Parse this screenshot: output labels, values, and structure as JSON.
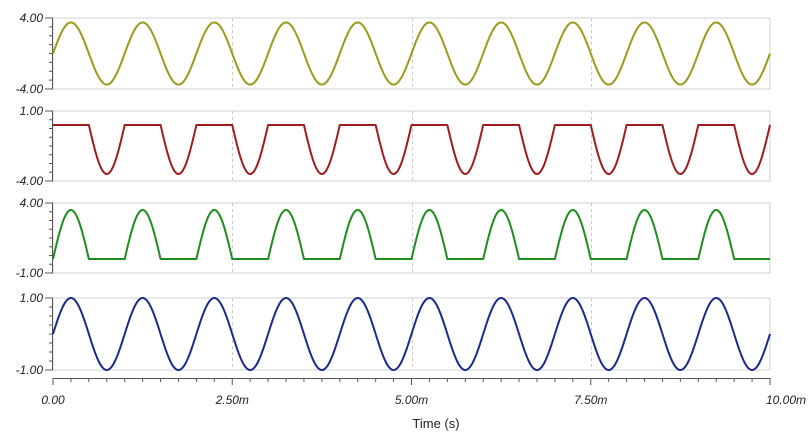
{
  "chart_data": {
    "type": "line",
    "xlabel": "Time (s)",
    "x_ticks": [
      "0.00",
      "2.50m",
      "5.00m",
      "7.50m",
      "10.00m"
    ],
    "x_tick_values": [
      0,
      0.0025,
      0.005,
      0.0075,
      0.01
    ],
    "xlim": [
      0,
      0.01
    ],
    "grid": "vertical dashed at major x ticks",
    "panels": [
      {
        "color": "#9a9a1e",
        "ylim": [
          -4,
          4
        ],
        "y_tick_labels": [
          "4.00",
          "-4.00"
        ],
        "signal": {
          "shape": "sine",
          "amplitude": 3.5,
          "offset": 0,
          "frequency_hz": 1000,
          "phase_deg": 0,
          "clip_min": null,
          "clip_max": null
        }
      },
      {
        "color": "#a01c1c",
        "ylim": [
          -4,
          1
        ],
        "y_tick_labels": [
          "1.00",
          "-4.00"
        ],
        "signal": {
          "shape": "sine",
          "amplitude": 3.5,
          "offset": 0,
          "frequency_hz": 1000,
          "phase_deg": 0,
          "clip_min": null,
          "clip_max": 0
        }
      },
      {
        "color": "#1e8c1e",
        "ylim": [
          -1,
          4
        ],
        "y_tick_labels": [
          "4.00",
          "-1.00"
        ],
        "signal": {
          "shape": "sine",
          "amplitude": 3.5,
          "offset": 0,
          "frequency_hz": 1000,
          "phase_deg": 0,
          "clip_min": 0,
          "clip_max": null
        }
      },
      {
        "color": "#1c2a8c",
        "ylim": [
          -1,
          1
        ],
        "y_tick_labels": [
          "1.00",
          "-1.00"
        ],
        "signal": {
          "shape": "sine",
          "amplitude": 1,
          "offset": 0,
          "frequency_hz": 1000,
          "phase_deg": 0,
          "clip_min": null,
          "clip_max": null
        }
      }
    ]
  }
}
